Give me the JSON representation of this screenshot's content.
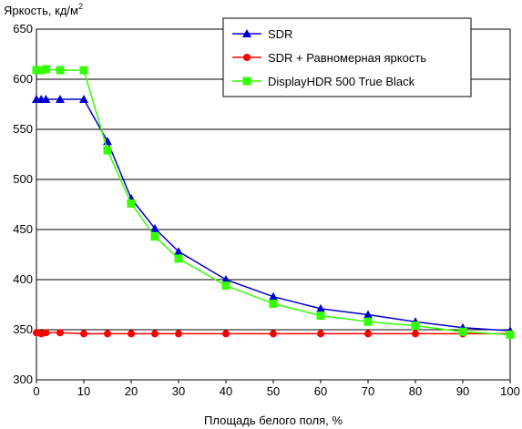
{
  "chart_data": {
    "type": "line",
    "ylabel": "Яркость, кд/м",
    "ylabel_sup": "2",
    "xlabel": "Площадь белого поля, %",
    "xlim": [
      0,
      100
    ],
    "ylim": [
      300,
      650
    ],
    "xticks": [
      0,
      10,
      20,
      30,
      40,
      50,
      60,
      70,
      80,
      90,
      100
    ],
    "yticks": [
      300,
      350,
      400,
      450,
      500,
      550,
      600,
      650
    ],
    "grid": "horizontal",
    "legend_position": "top-right",
    "series": [
      {
        "name": "SDR",
        "color": "#0000cc",
        "marker": "triangle",
        "x": [
          0,
          1,
          2,
          5,
          10,
          15,
          20,
          25,
          30,
          40,
          50,
          60,
          70,
          80,
          90,
          100
        ],
        "y": [
          580,
          580,
          580,
          580,
          580,
          538,
          481,
          451,
          428,
          400,
          383,
          371,
          365,
          358,
          352,
          349
        ]
      },
      {
        "name": "SDR + Равномерная яркость",
        "color": "#ff0000",
        "marker": "circle",
        "x": [
          0,
          1,
          2,
          5,
          10,
          15,
          20,
          25,
          30,
          40,
          50,
          60,
          70,
          80,
          90,
          100
        ],
        "y": [
          347,
          346,
          347,
          347,
          346,
          346,
          346,
          346,
          346,
          346,
          346,
          346,
          346,
          346,
          346,
          346
        ]
      },
      {
        "name": "DisplayHDR 500 True Black",
        "color": "#33ff00",
        "marker": "square",
        "x": [
          0,
          1,
          2,
          5,
          10,
          15,
          20,
          25,
          30,
          40,
          50,
          60,
          70,
          80,
          90,
          100
        ],
        "y": [
          609,
          609,
          610,
          609,
          609,
          529,
          476,
          443,
          421,
          394,
          376,
          364,
          358,
          354,
          348,
          345
        ]
      }
    ]
  }
}
